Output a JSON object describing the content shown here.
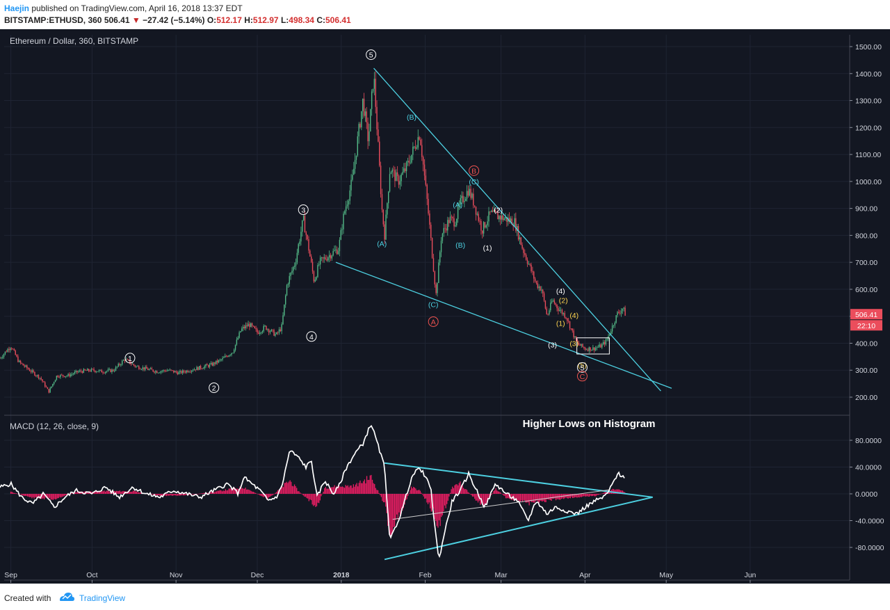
{
  "header": {
    "author": "Haejin",
    "published": "published on TradingView.com, April 16, 2018 13:37 EDT",
    "symbol": "BITSTAMP:ETHUSD, 360",
    "last": "506.41",
    "change": "−27.42 (−5.14%)",
    "o_label": "O:",
    "o": "512.17",
    "h_label": "H:",
    "h": "512.97",
    "l_label": "L:",
    "l": "498.34",
    "c_label": "C:",
    "c": "506.41"
  },
  "footer": {
    "created_with": "Created with",
    "brand": "TradingView"
  },
  "chart_data": [
    {
      "type": "candlestick",
      "title": "Ethereum / Dollar, 360, BITSTAMP",
      "x_labels": [
        "Sep",
        "Oct",
        "Nov",
        "Dec",
        "2018",
        "Feb",
        "Mar",
        "Apr",
        "May",
        "Jun"
      ],
      "y_ticks": [
        "1500.00",
        "1400.00",
        "1300.00",
        "1200.00",
        "1100.00",
        "1000.00",
        "900.00",
        "800.00",
        "700.00",
        "600.00",
        "500.00",
        "400.00",
        "300.00",
        "200.00"
      ],
      "ylim": [
        100,
        1540
      ],
      "up_color": "#53b987",
      "down_color": "#eb4d5c",
      "price_tag": "506.41",
      "time_tag": "22:10",
      "price_path": [
        [
          "2017-08-28",
          345
        ],
        [
          "2017-09-01",
          390
        ],
        [
          "2017-09-04",
          330
        ],
        [
          "2017-09-08",
          300
        ],
        [
          "2017-09-12",
          270
        ],
        [
          "2017-09-15",
          220
        ],
        [
          "2017-09-18",
          280
        ],
        [
          "2017-09-22",
          280
        ],
        [
          "2017-09-26",
          295
        ],
        [
          "2017-10-01",
          300
        ],
        [
          "2017-10-05",
          295
        ],
        [
          "2017-10-09",
          300
        ],
        [
          "2017-10-13",
          340
        ],
        [
          "2017-10-17",
          315
        ],
        [
          "2017-10-21",
          305
        ],
        [
          "2017-10-25",
          295
        ],
        [
          "2017-10-29",
          300
        ],
        [
          "2017-11-02",
          290
        ],
        [
          "2017-11-06",
          300
        ],
        [
          "2017-11-10",
          310
        ],
        [
          "2017-11-14",
          320
        ],
        [
          "2017-11-18",
          340
        ],
        [
          "2017-11-22",
          370
        ],
        [
          "2017-11-25",
          450
        ],
        [
          "2017-11-28",
          470
        ],
        [
          "2017-12-01",
          440
        ],
        [
          "2017-12-04",
          460
        ],
        [
          "2017-12-08",
          430
        ],
        [
          "2017-12-10",
          460
        ],
        [
          "2017-12-12",
          620
        ],
        [
          "2017-12-15",
          700
        ],
        [
          "2017-12-18",
          860
        ],
        [
          "2017-12-20",
          750
        ],
        [
          "2017-12-22",
          630
        ],
        [
          "2017-12-24",
          700
        ],
        [
          "2017-12-28",
          730
        ],
        [
          "2017-12-31",
          750
        ],
        [
          "2018-01-02",
          880
        ],
        [
          "2018-01-05",
          1000
        ],
        [
          "2018-01-09",
          1300
        ],
        [
          "2018-01-11",
          1150
        ],
        [
          "2018-01-13",
          1400
        ],
        [
          "2018-01-16",
          900
        ],
        [
          "2018-01-17",
          800
        ],
        [
          "2018-01-19",
          1050
        ],
        [
          "2018-01-22",
          1000
        ],
        [
          "2018-01-25",
          1050
        ],
        [
          "2018-01-27",
          1100
        ],
        [
          "2018-01-30",
          1180
        ],
        [
          "2018-02-02",
          900
        ],
        [
          "2018-02-05",
          580
        ],
        [
          "2018-02-07",
          800
        ],
        [
          "2018-02-10",
          860
        ],
        [
          "2018-02-12",
          850
        ],
        [
          "2018-02-14",
          920
        ],
        [
          "2018-02-17",
          970
        ],
        [
          "2018-02-19",
          920
        ],
        [
          "2018-02-22",
          820
        ],
        [
          "2018-02-25",
          880
        ],
        [
          "2018-02-28",
          870
        ],
        [
          "2018-03-03",
          860
        ],
        [
          "2018-03-06",
          850
        ],
        [
          "2018-03-09",
          750
        ],
        [
          "2018-03-11",
          700
        ],
        [
          "2018-03-14",
          620
        ],
        [
          "2018-03-16",
          600
        ],
        [
          "2018-03-18",
          500
        ],
        [
          "2018-03-20",
          560
        ],
        [
          "2018-03-22",
          530
        ],
        [
          "2018-03-25",
          500
        ],
        [
          "2018-03-27",
          450
        ],
        [
          "2018-03-29",
          400
        ],
        [
          "2018-04-01",
          380
        ],
        [
          "2018-04-04",
          380
        ],
        [
          "2018-04-07",
          390
        ],
        [
          "2018-04-09",
          410
        ],
        [
          "2018-04-11",
          460
        ],
        [
          "2018-04-13",
          510
        ],
        [
          "2018-04-15",
          530
        ],
        [
          "2018-04-16",
          506
        ]
      ],
      "trendlines": [
        {
          "from": [
            "2018-01-13",
            1420
          ],
          "to": [
            "2018-04-29",
            223
          ]
        },
        {
          "from": [
            "2017-12-30",
            700
          ],
          "to": [
            "2018-05-03",
            233
          ]
        }
      ],
      "box": {
        "x": [
          "2018-03-29",
          "2018-04-10"
        ],
        "y": [
          360,
          420
        ]
      },
      "annotations": [
        {
          "text": "1",
          "x": "2017-10-15",
          "y": 345,
          "color": "#ffffff",
          "circled": true
        },
        {
          "text": "2",
          "x": "2017-11-15",
          "y": 235,
          "color": "#ffffff",
          "circled": true
        },
        {
          "text": "3",
          "x": "2017-12-18",
          "y": 895,
          "color": "#ffffff",
          "circled": true
        },
        {
          "text": "4",
          "x": "2017-12-21",
          "y": 425,
          "color": "#ffffff",
          "circled": true
        },
        {
          "text": "5",
          "x": "2018-01-12",
          "y": 1470,
          "color": "#ffffff",
          "circled": true
        },
        {
          "text": "(A)",
          "x": "2018-01-16",
          "y": 770,
          "color": "#4dd0e1"
        },
        {
          "text": "(B)",
          "x": "2018-01-27",
          "y": 1240,
          "color": "#4dd0e1"
        },
        {
          "text": "(C)",
          "x": "2018-02-04",
          "y": 545,
          "color": "#4dd0e1"
        },
        {
          "text": "(A)",
          "x": "2018-02-13",
          "y": 915,
          "color": "#4dd0e1"
        },
        {
          "text": "(B)",
          "x": "2018-02-14",
          "y": 765,
          "color": "#4dd0e1"
        },
        {
          "text": "(C)",
          "x": "2018-02-19",
          "y": 1000,
          "color": "#4dd0e1"
        },
        {
          "text": "B",
          "x": "2018-02-19",
          "y": 1040,
          "color": "#ef5350",
          "circled": true
        },
        {
          "text": "A",
          "x": "2018-02-04",
          "y": 480,
          "color": "#ef5350",
          "circled": true
        },
        {
          "text": "(1)",
          "x": "2018-02-24",
          "y": 755,
          "color": "#ffffff"
        },
        {
          "text": "(2)",
          "x": "2018-02-28",
          "y": 895,
          "color": "#ffffff"
        },
        {
          "text": "(3)",
          "x": "2018-03-20",
          "y": 395,
          "color": "#ffffff"
        },
        {
          "text": "(4)",
          "x": "2018-03-23",
          "y": 595,
          "color": "#ffffff"
        },
        {
          "text": "(1)",
          "x": "2018-03-23",
          "y": 475,
          "color": "#ffd54f"
        },
        {
          "text": "(2)",
          "x": "2018-03-24",
          "y": 560,
          "color": "#ffd54f"
        },
        {
          "text": "(3)",
          "x": "2018-03-28",
          "y": 400,
          "color": "#ffd54f"
        },
        {
          "text": "(4)",
          "x": "2018-03-28",
          "y": 505,
          "color": "#ffd54f"
        },
        {
          "text": "(5)",
          "x": "2018-03-31",
          "y": 320,
          "color": "#ffd54f"
        },
        {
          "text": "5",
          "x": "2018-03-31",
          "y": 310,
          "color": "#ffffff",
          "circled": true
        },
        {
          "text": "C",
          "x": "2018-03-31",
          "y": 278,
          "color": "#ef5350",
          "circled": true
        }
      ]
    },
    {
      "type": "line",
      "title": "MACD (12, 26, close, 9)",
      "annotation_title": "Higher Lows on Histogram",
      "y_ticks": [
        "80.0000",
        "40.0000",
        "0.0000",
        "-40.0000",
        "-80.0000"
      ],
      "ylim": [
        -120,
        110
      ],
      "histogram_color": "#e91e63",
      "macd_color": "#ffffff",
      "macd_path": [
        [
          "2017-08-28",
          10
        ],
        [
          "2017-09-01",
          15
        ],
        [
          "2017-09-05",
          -5
        ],
        [
          "2017-09-09",
          -15
        ],
        [
          "2017-09-13",
          0
        ],
        [
          "2017-09-17",
          -20
        ],
        [
          "2017-09-21",
          -5
        ],
        [
          "2017-09-25",
          5
        ],
        [
          "2017-10-01",
          0
        ],
        [
          "2017-10-06",
          10
        ],
        [
          "2017-10-11",
          -5
        ],
        [
          "2017-10-16",
          10
        ],
        [
          "2017-10-21",
          0
        ],
        [
          "2017-10-26",
          -5
        ],
        [
          "2017-10-31",
          5
        ],
        [
          "2017-11-05",
          0
        ],
        [
          "2017-11-10",
          -5
        ],
        [
          "2017-11-15",
          5
        ],
        [
          "2017-11-20",
          15
        ],
        [
          "2017-11-24",
          0
        ],
        [
          "2017-11-26",
          25
        ],
        [
          "2017-11-29",
          15
        ],
        [
          "2017-12-02",
          5
        ],
        [
          "2017-12-05",
          -10
        ],
        [
          "2017-12-08",
          -5
        ],
        [
          "2017-12-10",
          10
        ],
        [
          "2017-12-13",
          65
        ],
        [
          "2017-12-16",
          55
        ],
        [
          "2017-12-19",
          40
        ],
        [
          "2017-12-21",
          50
        ],
        [
          "2017-12-23",
          -5
        ],
        [
          "2017-12-26",
          20
        ],
        [
          "2017-12-29",
          0
        ],
        [
          "2017-12-31",
          10
        ],
        [
          "2018-01-03",
          40
        ],
        [
          "2018-01-06",
          60
        ],
        [
          "2018-01-09",
          75
        ],
        [
          "2018-01-12",
          105
        ],
        [
          "2018-01-14",
          80
        ],
        [
          "2018-01-17",
          40
        ],
        [
          "2018-01-19",
          -70
        ],
        [
          "2018-01-23",
          -30
        ],
        [
          "2018-01-27",
          25
        ],
        [
          "2018-01-30",
          40
        ],
        [
          "2018-02-03",
          10
        ],
        [
          "2018-02-06",
          -100
        ],
        [
          "2018-02-08",
          -60
        ],
        [
          "2018-02-11",
          -10
        ],
        [
          "2018-02-14",
          5
        ],
        [
          "2018-02-17",
          30
        ],
        [
          "2018-02-20",
          5
        ],
        [
          "2018-02-23",
          -20
        ],
        [
          "2018-02-27",
          15
        ],
        [
          "2018-03-03",
          0
        ],
        [
          "2018-03-07",
          -10
        ],
        [
          "2018-03-11",
          -40
        ],
        [
          "2018-03-14",
          -10
        ],
        [
          "2018-03-18",
          -30
        ],
        [
          "2018-03-21",
          -20
        ],
        [
          "2018-03-25",
          -25
        ],
        [
          "2018-03-29",
          -30
        ],
        [
          "2018-04-01",
          -20
        ],
        [
          "2018-04-05",
          -10
        ],
        [
          "2018-04-08",
          -5
        ],
        [
          "2018-04-10",
          5
        ],
        [
          "2018-04-13",
          30
        ],
        [
          "2018-04-16",
          25
        ]
      ],
      "histogram_path": [
        [
          "2017-09-01",
          3
        ],
        [
          "2017-09-09",
          -6
        ],
        [
          "2017-09-17",
          -8
        ],
        [
          "2017-09-25",
          3
        ],
        [
          "2017-10-06",
          4
        ],
        [
          "2017-10-16",
          4
        ],
        [
          "2017-10-26",
          -3
        ],
        [
          "2017-11-05",
          -2
        ],
        [
          "2017-11-15",
          3
        ],
        [
          "2017-11-26",
          10
        ],
        [
          "2017-12-05",
          -8
        ],
        [
          "2017-12-13",
          20
        ],
        [
          "2017-12-16",
          5
        ],
        [
          "2017-12-23",
          -20
        ],
        [
          "2017-12-26",
          10
        ],
        [
          "2018-01-06",
          12
        ],
        [
          "2018-01-12",
          25
        ],
        [
          "2018-01-17",
          -15
        ],
        [
          "2018-01-19",
          -55
        ],
        [
          "2018-01-23",
          -30
        ],
        [
          "2018-01-27",
          10
        ],
        [
          "2018-01-30",
          5
        ],
        [
          "2018-02-03",
          -20
        ],
        [
          "2018-02-06",
          -45
        ],
        [
          "2018-02-08",
          -25
        ],
        [
          "2018-02-11",
          10
        ],
        [
          "2018-02-14",
          15
        ],
        [
          "2018-02-20",
          -10
        ],
        [
          "2018-02-23",
          -18
        ],
        [
          "2018-02-27",
          8
        ],
        [
          "2018-03-03",
          -6
        ],
        [
          "2018-03-07",
          -10
        ],
        [
          "2018-03-11",
          -14
        ],
        [
          "2018-03-18",
          -10
        ],
        [
          "2018-03-25",
          -6
        ],
        [
          "2018-03-29",
          -5
        ],
        [
          "2018-04-05",
          -3
        ],
        [
          "2018-04-10",
          5
        ],
        [
          "2018-04-13",
          8
        ],
        [
          "2018-04-16",
          2
        ]
      ],
      "trendlines": [
        {
          "from": [
            "2018-01-17",
            46
          ],
          "to": [
            "2018-04-26",
            -5
          ],
          "color": "#4dd0e1"
        },
        {
          "from": [
            "2018-01-17",
            -98
          ],
          "to": [
            "2018-04-26",
            -5
          ],
          "color": "#4dd0e1"
        },
        {
          "from": [
            "2018-01-20",
            -38
          ],
          "to": [
            "2018-04-10",
            6
          ],
          "color": "#d0d0d0"
        }
      ]
    }
  ]
}
